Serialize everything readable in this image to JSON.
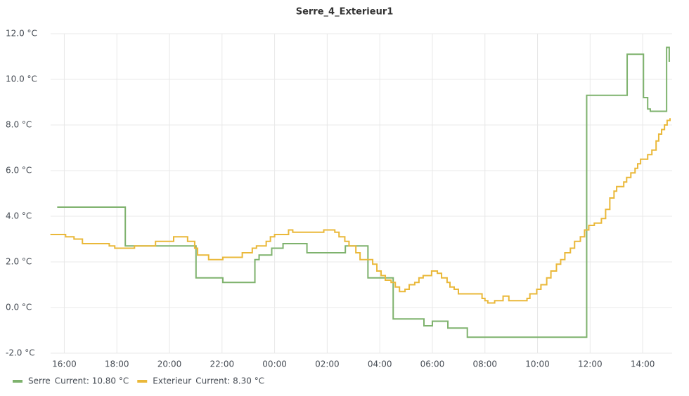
{
  "chart_data": {
    "type": "line",
    "step": true,
    "title": "Serre_4_Exterieur1",
    "xlim": [
      15.48,
      39.12
    ],
    "ylim": [
      -2,
      12
    ],
    "grid": true,
    "legend": "bottom-left",
    "xticks": [
      {
        "value": 16,
        "label": "16:00"
      },
      {
        "value": 18,
        "label": "18:00"
      },
      {
        "value": 20,
        "label": "20:00"
      },
      {
        "value": 22,
        "label": "22:00"
      },
      {
        "value": 24,
        "label": "00:00"
      },
      {
        "value": 26,
        "label": "02:00"
      },
      {
        "value": 28,
        "label": "04:00"
      },
      {
        "value": 30,
        "label": "06:00"
      },
      {
        "value": 32,
        "label": "08:00"
      },
      {
        "value": 34,
        "label": "10:00"
      },
      {
        "value": 36,
        "label": "12:00"
      },
      {
        "value": 38,
        "label": "14:00"
      }
    ],
    "yticks": [
      {
        "value": -2,
        "label": "-2.0 °C"
      },
      {
        "value": 0,
        "label": "0.0 °C"
      },
      {
        "value": 2,
        "label": "2.0 °C"
      },
      {
        "value": 4,
        "label": "4.0 °C"
      },
      {
        "value": 6,
        "label": "6.0 °C"
      },
      {
        "value": 8,
        "label": "8.0 °C"
      },
      {
        "value": 10,
        "label": "10.0 °C"
      },
      {
        "value": 12,
        "label": "12.0 °C"
      }
    ],
    "series": [
      {
        "name": "Serre",
        "color": "#7eb26d",
        "legend_value": "Current: 10.80 °C",
        "x": [
          15.73,
          18.32,
          21.01,
          22.03,
          23.25,
          23.41,
          23.89,
          24.32,
          25.23,
          26.69,
          27.55,
          28.51,
          29.68,
          30.0,
          30.59,
          31.33,
          35.87,
          37.41,
          38.03,
          38.19,
          38.29,
          38.91,
          39.01,
          39.04
        ],
        "values": [
          4.4,
          2.7,
          1.3,
          1.1,
          2.1,
          2.3,
          2.6,
          2.8,
          2.4,
          2.7,
          1.3,
          -0.5,
          -0.8,
          -0.6,
          -0.9,
          -1.3,
          9.3,
          11.1,
          9.2,
          8.7,
          8.6,
          11.4,
          10.8,
          10.8
        ]
      },
      {
        "name": "Exterieur",
        "color": "#eab839",
        "legend_value": "Current: 8.30 °C",
        "x": [
          15.47,
          16.05,
          16.37,
          16.69,
          17.71,
          17.92,
          18.67,
          19.47,
          20.16,
          20.69,
          20.96,
          21.07,
          21.49,
          22.03,
          22.77,
          23.15,
          23.31,
          23.68,
          23.84,
          24.0,
          24.53,
          24.69,
          25.87,
          26.29,
          26.45,
          26.67,
          26.83,
          27.09,
          27.25,
          27.73,
          27.89,
          28.05,
          28.21,
          28.43,
          28.59,
          28.75,
          28.96,
          29.12,
          29.33,
          29.49,
          29.65,
          29.97,
          30.19,
          30.35,
          30.56,
          30.67,
          30.83,
          30.99,
          31.73,
          31.89,
          32.0,
          32.11,
          32.37,
          32.69,
          32.91,
          33.6,
          33.71,
          33.97,
          34.13,
          34.35,
          34.51,
          34.72,
          34.88,
          35.04,
          35.25,
          35.41,
          35.63,
          35.79,
          35.95,
          36.16,
          36.43,
          36.59,
          36.75,
          36.91,
          37.01,
          37.28,
          37.39,
          37.55,
          37.71,
          37.81,
          37.92,
          38.19,
          38.35,
          38.51,
          38.61,
          38.72,
          38.83,
          38.93,
          39.04
        ],
        "values": [
          3.2,
          3.1,
          3.0,
          2.8,
          2.7,
          2.6,
          2.7,
          2.9,
          3.1,
          2.9,
          2.6,
          2.3,
          2.1,
          2.2,
          2.4,
          2.6,
          2.7,
          2.9,
          3.1,
          3.2,
          3.4,
          3.3,
          3.4,
          3.3,
          3.1,
          2.9,
          2.7,
          2.4,
          2.1,
          1.9,
          1.6,
          1.4,
          1.2,
          1.1,
          0.9,
          0.7,
          0.8,
          1.0,
          1.1,
          1.3,
          1.4,
          1.6,
          1.5,
          1.3,
          1.1,
          0.9,
          0.8,
          0.6,
          0.6,
          0.4,
          0.3,
          0.2,
          0.3,
          0.5,
          0.3,
          0.4,
          0.6,
          0.8,
          1.0,
          1.3,
          1.6,
          1.9,
          2.1,
          2.4,
          2.6,
          2.9,
          3.1,
          3.4,
          3.6,
          3.7,
          3.9,
          4.3,
          4.8,
          5.1,
          5.3,
          5.5,
          5.7,
          5.9,
          6.1,
          6.3,
          6.5,
          6.7,
          6.9,
          7.3,
          7.6,
          7.8,
          8.0,
          8.2,
          8.3
        ]
      }
    ]
  }
}
